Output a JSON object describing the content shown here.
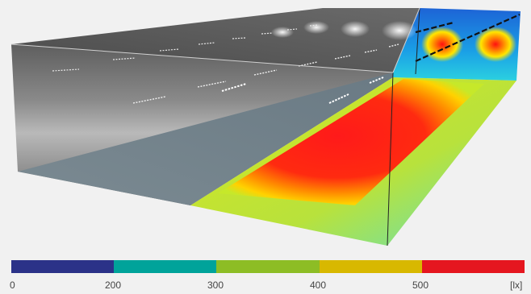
{
  "legend": {
    "unit": "[lx]",
    "ticks": [
      "0",
      "200",
      "300",
      "400",
      "500"
    ],
    "segments": [
      {
        "color": "#2b3288"
      },
      {
        "color": "#00a39a"
      },
      {
        "color": "#8dbd25"
      },
      {
        "color": "#d8b800"
      },
      {
        "color": "#e5161f"
      }
    ]
  }
}
